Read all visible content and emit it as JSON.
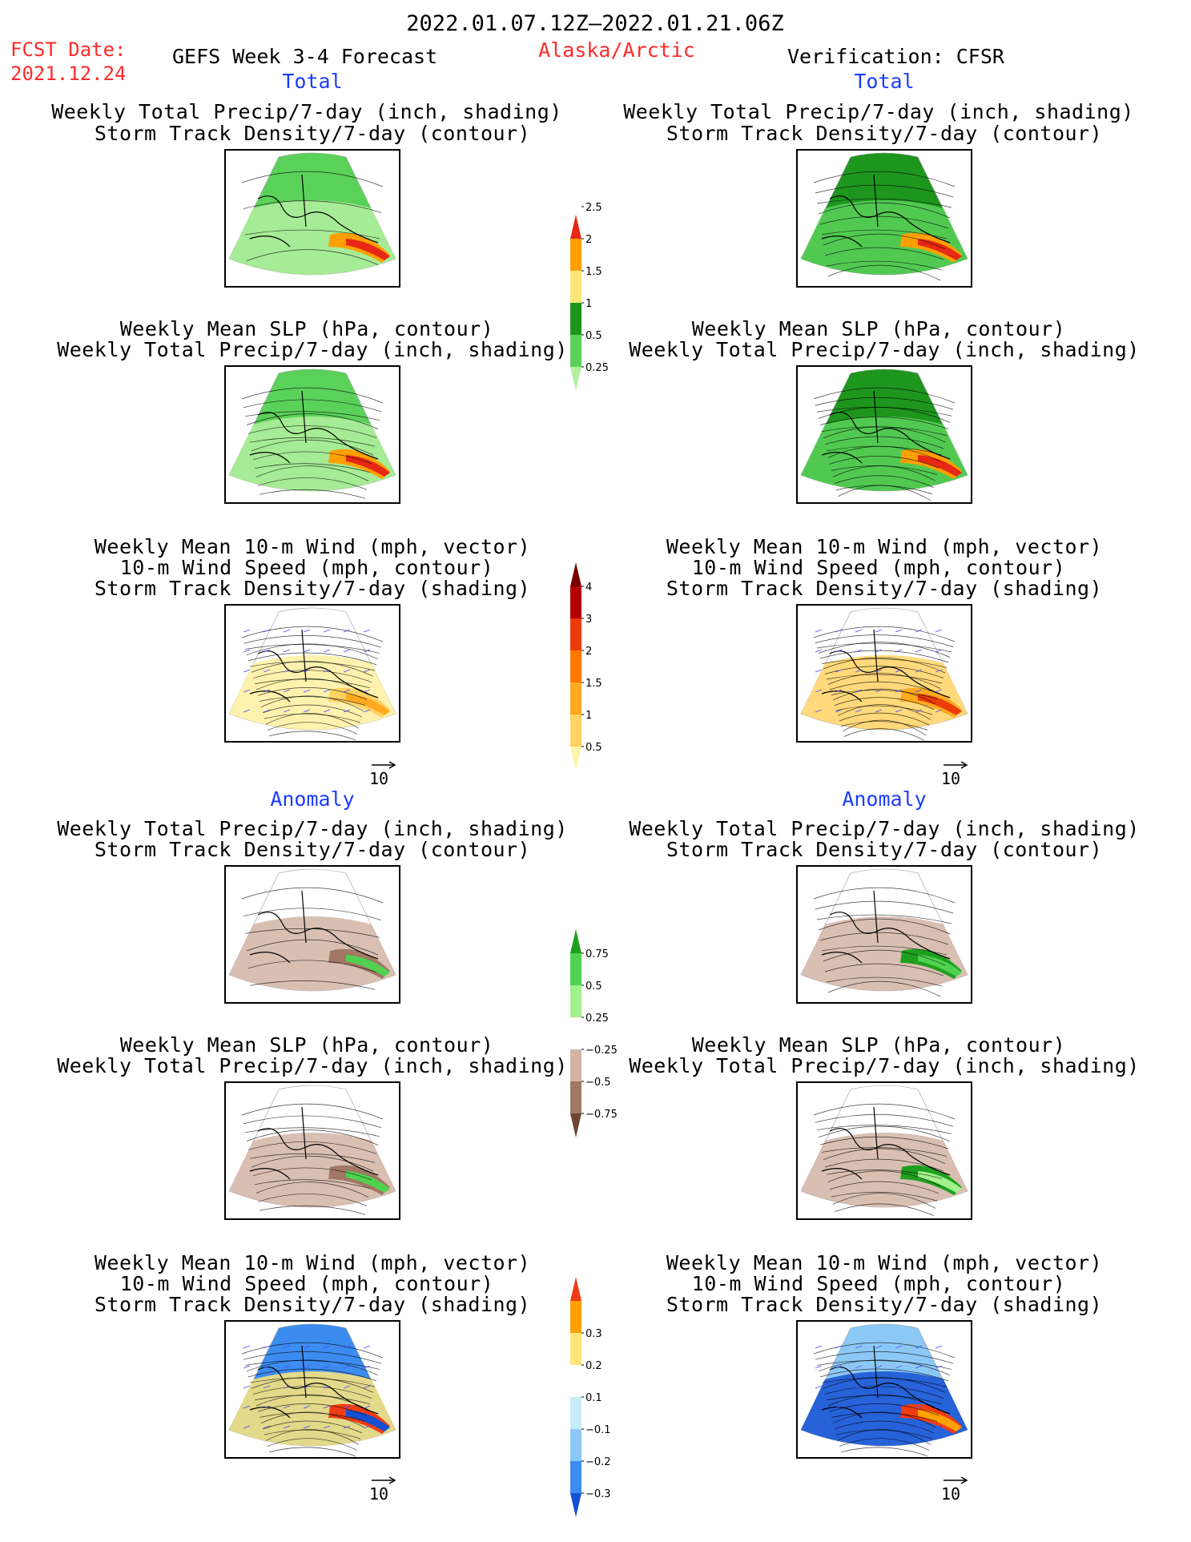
{
  "header": {
    "period": "2022.01.07.12Z–2022.01.21.06Z",
    "fcst_label": "FCST Date:",
    "fcst_date": "2021.12.24",
    "product": "GEFS Week 3-4 Forecast",
    "region": "Alaska/Arctic",
    "verification": "Verification: CFSR"
  },
  "sections": {
    "total": "Total",
    "anomaly": "Anomaly"
  },
  "titles": {
    "precip_storm": [
      "Weekly Total Precip/7-day (inch, shading)",
      "Storm Track Density/7-day (contour)"
    ],
    "slp_precip": [
      "Weekly Mean SLP (hPa, contour)",
      "Weekly Total Precip/7-day (inch, shading)"
    ],
    "wind_storm": [
      "Weekly Mean 10-m Wind (mph, vector)",
      "10-m Wind Speed (mph, contour)",
      "Storm Track Density/7-day (shading)"
    ]
  },
  "vector_ref": "10",
  "chart_data": [
    {
      "type": "heatmap",
      "name": "Total precipitation colorbar (inch)",
      "levels": [
        0.25,
        0.5,
        1,
        1.5,
        2,
        2.5
      ],
      "labels": [
        "0.25",
        "0.5",
        "1",
        "1.5",
        "2",
        "2.5"
      ],
      "colors": [
        "#b4f0a0",
        "#5ad25a",
        "#1e961e",
        "#ffe678",
        "#ffa000",
        "#e62814"
      ]
    },
    {
      "type": "heatmap",
      "name": "Total storm track density colorbar",
      "levels": [
        0.5,
        1,
        1.5,
        2,
        3,
        4
      ],
      "labels": [
        "0.5",
        "1",
        "1.5",
        "2",
        "3",
        "4"
      ],
      "colors": [
        "#fff5aa",
        "#ffd264",
        "#ffaa1e",
        "#ff7800",
        "#eb3c0a",
        "#b40000",
        "#780000"
      ]
    },
    {
      "type": "heatmap",
      "name": "Precipitation anomaly colorbar (inch)",
      "levels": [
        -0.75,
        -0.5,
        -0.25,
        0.25,
        0.5,
        0.75
      ],
      "labels": [
        "−0.75",
        "−0.5",
        "−0.25",
        "0.25",
        "0.5",
        "0.75"
      ],
      "colors": [
        "#6e4632",
        "#a07864",
        "#d2b4a5",
        "#ffffff",
        "#a0f08c",
        "#50d250",
        "#1ea01e"
      ]
    },
    {
      "type": "heatmap",
      "name": "Storm track density anomaly colorbar",
      "levels": [
        -0.3,
        -0.2,
        -0.1,
        0.1,
        0.2,
        0.3
      ],
      "labels": [
        "−0.3",
        "−0.2",
        "−0.1",
        "0.1",
        "0.2",
        "0.3"
      ],
      "colors": [
        "#1450d2",
        "#3c8cf0",
        "#8cc8f5",
        "#c8ebfa",
        "#ffffff",
        "#ffe678",
        "#ffa000",
        "#f03c14"
      ]
    }
  ],
  "colors": {
    "red_text": "#ff2a2a",
    "blue_text": "#1a3cff"
  }
}
